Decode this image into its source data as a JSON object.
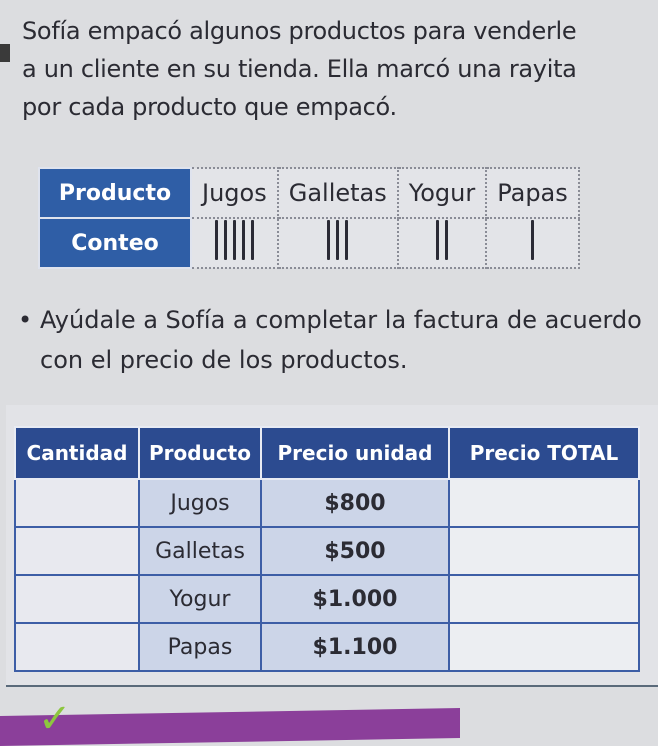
{
  "intro": {
    "line1": "Sofía empacó algunos productos para venderle",
    "line2": "a un cliente en su tienda. Ella marcó una rayita",
    "line3": "por cada producto que empacó."
  },
  "tally_table": {
    "header_label": "Producto",
    "count_label": "Conteo",
    "products": [
      {
        "name": "Jugos",
        "count": 5
      },
      {
        "name": "Galletas",
        "count": 3
      },
      {
        "name": "Yogur",
        "count": 2
      },
      {
        "name": "Papas",
        "count": 1
      }
    ]
  },
  "instruction": "Ayúdale a Sofía a completar la factura de acuerdo con el precio de los productos.",
  "invoice": {
    "headers": [
      "Cantidad",
      "Producto",
      "Precio unidad",
      "Precio TOTAL"
    ],
    "rows": [
      {
        "cantidad": "",
        "producto": "Jugos",
        "precio_unidad": "$800",
        "precio_total": ""
      },
      {
        "cantidad": "",
        "producto": "Galletas",
        "precio_unidad": "$500",
        "precio_total": ""
      },
      {
        "cantidad": "",
        "producto": "Yogur",
        "precio_unidad": "$1.000",
        "precio_total": ""
      },
      {
        "cantidad": "",
        "producto": "Papas",
        "precio_unidad": "$1.100",
        "precio_total": ""
      }
    ]
  },
  "colors": {
    "header_blue": "#2f5ea6",
    "invoice_header": "#2c4b90",
    "banner_purple": "#8b3f9a",
    "check_green": "#8dc63f"
  }
}
